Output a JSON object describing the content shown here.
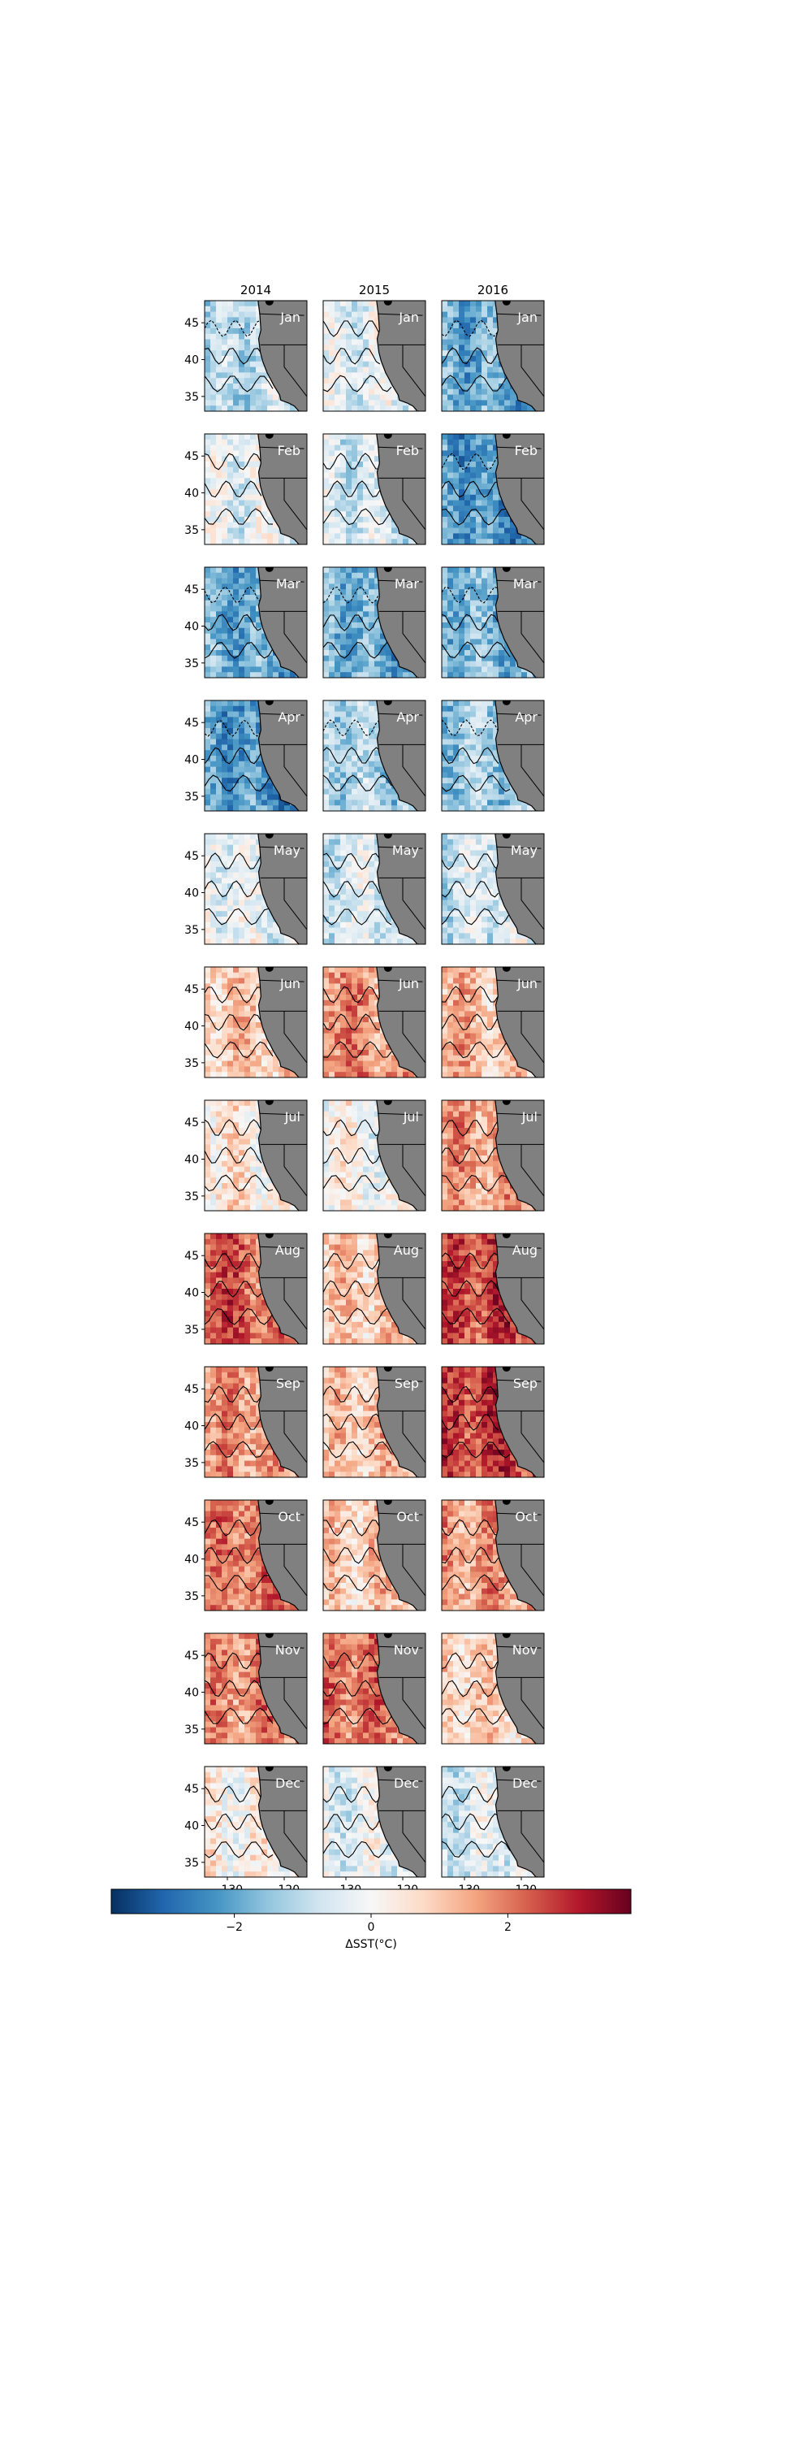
{
  "chart_data": {
    "type": "heatmap",
    "description_units": "sea surface temperature anomaly",
    "columns": [
      "2014",
      "2015",
      "2016"
    ],
    "rows": [
      "Jan",
      "Feb",
      "Mar",
      "Apr",
      "May",
      "Jun",
      "Jul",
      "Aug",
      "Sep",
      "Oct",
      "Nov",
      "Dec"
    ],
    "x_ticks": [
      -130,
      -120
    ],
    "x_tick_labels": [
      "−130",
      "−120"
    ],
    "y_ticks": [
      45,
      40,
      35
    ],
    "y_tick_labels": [
      "45",
      "40",
      "35"
    ],
    "xlim": [
      -134,
      -116
    ],
    "ylim": [
      33,
      48
    ],
    "mean_anomaly": [
      [
        -1.2,
        -0.5,
        -1.8
      ],
      [
        -0.4,
        -0.6,
        -2.0
      ],
      [
        -1.8,
        -1.6,
        -1.6
      ],
      [
        -2.0,
        -1.0,
        -1.4
      ],
      [
        -0.2,
        -0.6,
        -0.8
      ],
      [
        1.0,
        1.9,
        1.3
      ],
      [
        0.6,
        0.2,
        1.5
      ],
      [
        2.4,
        0.9,
        2.4
      ],
      [
        1.6,
        0.9,
        2.5
      ],
      [
        1.8,
        0.8,
        1.6
      ],
      [
        1.6,
        2.0,
        0.9
      ],
      [
        0.2,
        -0.5,
        -0.7
      ]
    ],
    "colorbar": {
      "label": "ΔSST(°C)",
      "vmin": -3.8,
      "vmax": 3.8,
      "ticks": [
        -2,
        0,
        2
      ],
      "tick_labels": [
        "−2",
        "0",
        "2"
      ],
      "colormap": "RdBu_r"
    },
    "colors": {
      "land": "#808080",
      "frame": "#000000"
    }
  }
}
